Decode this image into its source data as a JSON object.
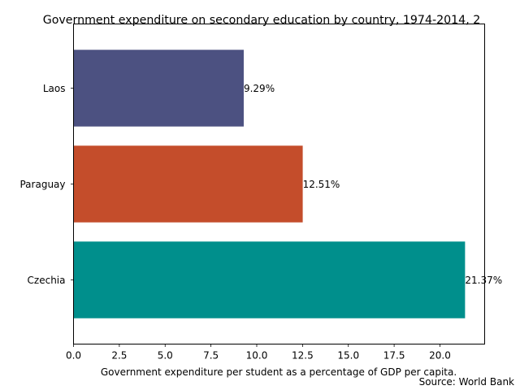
{
  "chart_data": {
    "type": "bar",
    "orientation": "horizontal",
    "title": "Government expenditure on secondary education by country, 1974-2014, 2",
    "xlabel": "Government expenditure per student as a percentage of GDP per capita.",
    "ylabel": "",
    "source": "Source: World Bank",
    "categories": [
      "Laos",
      "Paraguay",
      "Czechia"
    ],
    "values": [
      9.29,
      12.51,
      21.37
    ],
    "value_labels": [
      "9.29%",
      "12.51%",
      "21.37%"
    ],
    "colors": [
      "#4c5181",
      "#c44d2b",
      "#008f8c"
    ],
    "xlim": [
      0,
      22.44
    ],
    "x_ticks": [
      0,
      2.5,
      5,
      7.5,
      10,
      12.5,
      15,
      17.5,
      20
    ],
    "x_tick_labels": [
      "0.0",
      "2.5",
      "5.0",
      "7.5",
      "10.0",
      "12.5",
      "15.0",
      "17.5",
      "20.0"
    ],
    "grid": false,
    "legend": "none"
  }
}
